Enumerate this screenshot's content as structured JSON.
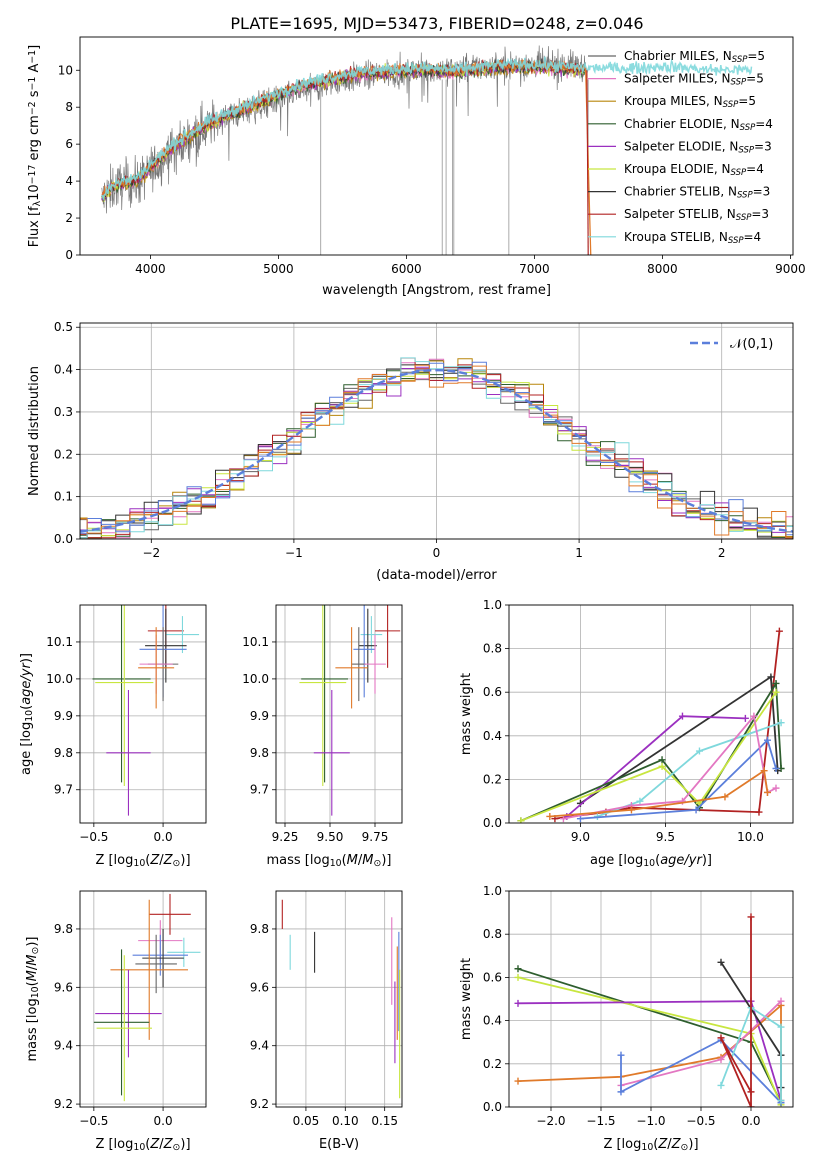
{
  "title": "PLATE=1695, MJD=53473, FIBERID=0248, z=0.046",
  "colors": {
    "Chabrier MILES": "#666666",
    "Salpeter MILES": "#e377c2",
    "Kroupa MILES": "#b8860b",
    "Chabrier ELODIE": "#2e5e2e",
    "Salpeter ELODIE": "#9b30c0",
    "Kroupa ELODIE": "#c8e640",
    "Chabrier STELIB": "#333333",
    "Salpeter STELIB": "#b22222",
    "Kroupa STELIB": "#7fd8dc",
    "blue": "#5b7fdb",
    "orange": "#e07a2a",
    "data": "#777777",
    "grid": "#b0b0b0"
  },
  "chart_data": [
    {
      "id": "spectrum",
      "type": "line",
      "title": "PLATE=1695, MJD=53473, FIBERID=0248, z=0.046",
      "xlabel": "wavelength [Angstrom, rest frame]",
      "ylabel": "Flux [f_λ 10^-17 erg cm^-2 s^-1 A^-1]",
      "xlim": [
        3450,
        9020
      ],
      "ylim": [
        0,
        11.8
      ],
      "xticks": [
        4000,
        5000,
        6000,
        7000,
        8000,
        9000
      ],
      "yticks": [
        0,
        2,
        4,
        6,
        8,
        10
      ],
      "grid": false,
      "legend_position": "top-right",
      "legend": [
        {
          "base": "Chabrier MILES, N",
          "sub": "SSP",
          "tail": "=5"
        },
        {
          "base": "Salpeter MILES, N",
          "sub": "SSP",
          "tail": "=5"
        },
        {
          "base": "Kroupa MILES, N",
          "sub": "SSP",
          "tail": "=5"
        },
        {
          "base": "Chabrier ELODIE, N",
          "sub": "SSP",
          "tail": "=4"
        },
        {
          "base": "Salpeter ELODIE, N",
          "sub": "SSP",
          "tail": "=3"
        },
        {
          "base": "Kroupa ELODIE, N",
          "sub": "SSP",
          "tail": "=4"
        },
        {
          "base": "Chabrier STELIB, N",
          "sub": "SSP",
          "tail": "=3"
        },
        {
          "base": "Salpeter STELIB, N",
          "sub": "SSP",
          "tail": "=3"
        },
        {
          "base": "Kroupa STELIB, N",
          "sub": "SSP",
          "tail": "=4"
        }
      ],
      "data_trend": {
        "x": [
          3620,
          3700,
          3800,
          3900,
          4000,
          4100,
          4200,
          4300,
          4400,
          4600,
          4800,
          5000,
          5200,
          5400,
          5600,
          5800,
          6000,
          6200,
          6400,
          6600,
          6800,
          7000,
          7200,
          7400
        ],
        "y": [
          3.0,
          3.6,
          3.9,
          3.9,
          4.6,
          5.2,
          5.8,
          6.3,
          6.8,
          7.5,
          7.9,
          8.4,
          8.9,
          9.3,
          9.6,
          9.8,
          9.9,
          10.0,
          10.1,
          10.2,
          10.3,
          10.3,
          10.3,
          10.2
        ]
      },
      "model_trend": {
        "x": [
          3620,
          3700,
          3800,
          3900,
          4000,
          4100,
          4200,
          4300,
          4400,
          4600,
          4800,
          5000,
          5200,
          5400,
          5600,
          5800,
          6000,
          6200,
          6400,
          6600,
          6800,
          7000,
          7200,
          7400,
          7600,
          7800,
          8000,
          8200,
          8400,
          8600,
          8700
        ],
        "y": [
          3.1,
          3.7,
          3.9,
          4.1,
          4.8,
          5.4,
          6.0,
          6.4,
          6.9,
          7.6,
          8.1,
          8.7,
          9.2,
          9.5,
          9.8,
          9.9,
          10.0,
          10.0,
          9.9,
          10.1,
          10.2,
          10.2,
          10.1,
          10.0,
          10.0,
          10.0,
          10.1,
          10.0,
          9.9,
          9.9,
          9.9
        ]
      },
      "dropouts": [
        5330,
        6280,
        6310,
        6360,
        6370,
        6800,
        7420
      ]
    },
    {
      "id": "residuals",
      "type": "histogram",
      "xlabel": "(data-model)/error",
      "ylabel": "Normed distribution",
      "xlim": [
        -2.5,
        2.5
      ],
      "ylim": [
        0,
        0.51
      ],
      "xticks": [
        -2,
        -1,
        0,
        1,
        2
      ],
      "yticks": [
        0.0,
        0.1,
        0.2,
        0.3,
        0.4,
        0.5
      ],
      "grid": true,
      "legend_position": "top-right",
      "legend_label": "𝒩(0,1)",
      "bin_width": 0.1
    },
    {
      "id": "age_vs_Z",
      "type": "scatter",
      "xlabel": "Z [log10(Z/Z☉)]",
      "ylabel": "age [log10(age/yr)]",
      "xlim": [
        -0.6,
        0.31
      ],
      "ylim": [
        9.61,
        10.2
      ],
      "xticks": [
        -0.5,
        0.0
      ],
      "yticks": [
        9.7,
        9.8,
        9.9,
        10.0,
        10.1
      ],
      "grid": true,
      "points": [
        {
          "s": "Salpeter STELIB",
          "x": 0.02,
          "y": 10.13,
          "xe": 0.13,
          "ye": 0.1
        },
        {
          "s": "Kroupa STELIB",
          "x": 0.14,
          "y": 10.12,
          "xe": 0.12,
          "ye": 0.05
        },
        {
          "s": "Chabrier STELIB",
          "x": 0.02,
          "y": 10.09,
          "xe": 0.15,
          "ye": 0.1
        },
        {
          "s": "blue",
          "x": 0.0,
          "y": 10.08,
          "xe": 0.17,
          "ye": 0.13
        },
        {
          "s": "Chabrier MILES",
          "x": 0.0,
          "y": 10.04,
          "xe": 0.11,
          "ye": 0.1
        },
        {
          "s": "Salpeter MILES",
          "x": -0.05,
          "y": 10.04,
          "xe": 0.12,
          "ye": 0.08
        },
        {
          "s": "orange",
          "x": -0.05,
          "y": 10.03,
          "xe": 0.13,
          "ye": 0.11
        },
        {
          "s": "Chabrier ELODIE",
          "x": -0.3,
          "y": 10.0,
          "xe": 0.21,
          "ye": 0.28
        },
        {
          "s": "Kroupa ELODIE",
          "x": -0.28,
          "y": 9.99,
          "xe": 0.21,
          "ye": 0.28
        },
        {
          "s": "Salpeter ELODIE",
          "x": -0.25,
          "y": 9.8,
          "xe": 0.16,
          "ye": 0.17
        }
      ]
    },
    {
      "id": "age_vs_mass",
      "type": "scatter",
      "xlabel": "mass [log10(M/M☉)]",
      "ylabel": "",
      "xlim": [
        9.2,
        9.9
      ],
      "ylim": [
        9.61,
        10.2
      ],
      "xticks": [
        9.25,
        9.5,
        9.75
      ],
      "yticks": [
        9.7,
        9.8,
        9.9,
        10.0,
        10.1
      ],
      "grid": true,
      "points": [
        {
          "s": "Salpeter STELIB",
          "x": 9.82,
          "y": 10.13,
          "xe": 0.07,
          "ye": 0.1
        },
        {
          "s": "Kroupa STELIB",
          "x": 9.73,
          "y": 10.12,
          "xe": 0.06,
          "ye": 0.05
        },
        {
          "s": "Chabrier STELIB",
          "x": 9.71,
          "y": 10.09,
          "xe": 0.05,
          "ye": 0.1
        },
        {
          "s": "blue",
          "x": 9.69,
          "y": 10.08,
          "xe": 0.06,
          "ye": 0.13
        },
        {
          "s": "Chabrier MILES",
          "x": 9.66,
          "y": 10.04,
          "xe": 0.04,
          "ye": 0.1
        },
        {
          "s": "Salpeter MILES",
          "x": 9.75,
          "y": 10.04,
          "xe": 0.06,
          "ye": 0.08
        },
        {
          "s": "orange",
          "x": 9.62,
          "y": 10.03,
          "xe": 0.09,
          "ye": 0.11
        },
        {
          "s": "Chabrier ELODIE",
          "x": 9.47,
          "y": 10.0,
          "xe": 0.13,
          "ye": 0.28
        },
        {
          "s": "Kroupa ELODIE",
          "x": 9.46,
          "y": 9.99,
          "xe": 0.13,
          "ye": 0.28
        },
        {
          "s": "Salpeter ELODIE",
          "x": 9.51,
          "y": 9.8,
          "xe": 0.1,
          "ye": 0.17
        }
      ]
    },
    {
      "id": "weight_vs_age",
      "type": "line",
      "xlabel": "age [log10(age/yr)]",
      "ylabel": "mass weight",
      "xlim": [
        8.58,
        10.25
      ],
      "ylim": [
        0,
        1.0
      ],
      "xticks": [
        9.0,
        9.5,
        10.0
      ],
      "yticks": [
        0.0,
        0.2,
        0.4,
        0.6,
        0.8,
        1.0
      ],
      "grid": true,
      "series": [
        {
          "s": "Salpeter STELIB",
          "x": [
            8.85,
            9.15,
            9.3,
            10.05,
            10.17
          ],
          "y": [
            0.02,
            0.05,
            0.07,
            0.05,
            0.88
          ]
        },
        {
          "s": "Chabrier STELIB",
          "x": [
            9.0,
            10.12,
            10.16
          ],
          "y": [
            0.09,
            0.67,
            0.24
          ]
        },
        {
          "s": "Salpeter ELODIE",
          "x": [
            8.92,
            9.6,
            9.97
          ],
          "y": [
            0.03,
            0.49,
            0.48
          ]
        },
        {
          "s": "Chabrier ELODIE",
          "x": [
            8.65,
            9.48,
            9.7,
            10.15,
            10.18
          ],
          "y": [
            0.01,
            0.29,
            0.07,
            0.64,
            0.25
          ]
        },
        {
          "s": "Kroupa ELODIE",
          "x": [
            8.65,
            9.48,
            9.7,
            10.15
          ],
          "y": [
            0.01,
            0.26,
            0.09,
            0.6
          ]
        },
        {
          "s": "Kroupa STELIB",
          "x": [
            9.1,
            9.35,
            9.7,
            10.18
          ],
          "y": [
            0.03,
            0.1,
            0.33,
            0.46
          ]
        },
        {
          "s": "blue",
          "x": [
            9.0,
            9.68,
            10.1,
            10.15
          ],
          "y": [
            0.02,
            0.06,
            0.38,
            0.25
          ]
        },
        {
          "s": "Salpeter MILES",
          "x": [
            8.9,
            9.3,
            9.6,
            10.02,
            10.1,
            10.15
          ],
          "y": [
            0.02,
            0.08,
            0.1,
            0.49,
            0.14,
            0.16
          ]
        },
        {
          "s": "orange",
          "x": [
            8.82,
            9.3,
            9.85,
            10.08,
            10.1
          ],
          "y": [
            0.03,
            0.06,
            0.12,
            0.24,
            0.14
          ]
        }
      ]
    },
    {
      "id": "mass_vs_Z",
      "type": "scatter",
      "xlabel": "Z [log10(Z/Z☉)]",
      "ylabel": "mass [log10(M/M☉)]",
      "xlim": [
        -0.6,
        0.31
      ],
      "ylim": [
        9.19,
        9.93
      ],
      "xticks": [
        -0.5,
        0.0
      ],
      "yticks": [
        9.2,
        9.4,
        9.6,
        9.8
      ],
      "grid": true,
      "points": [
        {
          "s": "Salpeter STELIB",
          "x": 0.05,
          "y": 9.85,
          "xe": 0.15,
          "ye": 0.07
        },
        {
          "s": "Salpeter MILES",
          "x": -0.02,
          "y": 9.76,
          "xe": 0.16,
          "ye": 0.07
        },
        {
          "s": "Kroupa STELIB",
          "x": 0.15,
          "y": 9.72,
          "xe": 0.12,
          "ye": 0.05
        },
        {
          "s": "blue",
          "x": -0.02,
          "y": 9.71,
          "xe": 0.2,
          "ye": 0.07
        },
        {
          "s": "Chabrier STELIB",
          "x": 0.0,
          "y": 9.7,
          "xe": 0.15,
          "ye": 0.1
        },
        {
          "s": "Chabrier MILES",
          "x": -0.05,
          "y": 9.68,
          "xe": 0.15,
          "ye": 0.1
        },
        {
          "s": "orange",
          "x": -0.1,
          "y": 9.66,
          "xe": 0.28,
          "ye": 0.24
        },
        {
          "s": "Salpeter ELODIE",
          "x": -0.25,
          "y": 9.51,
          "xe": 0.24,
          "ye": 0.15
        },
        {
          "s": "Chabrier ELODIE",
          "x": -0.3,
          "y": 9.48,
          "xe": 0.2,
          "ye": 0.25
        },
        {
          "s": "Kroupa ELODIE",
          "x": -0.28,
          "y": 9.46,
          "xe": 0.2,
          "ye": 0.25
        }
      ]
    },
    {
      "id": "mass_vs_ebv",
      "type": "scatter",
      "xlabel": "E(B-V)",
      "ylabel": "",
      "xlim": [
        0.012,
        0.172
      ],
      "ylim": [
        9.19,
        9.93
      ],
      "xticks": [
        0.05,
        0.1,
        0.15
      ],
      "yticks": [
        9.2,
        9.4,
        9.6,
        9.8
      ],
      "grid": true,
      "points": [
        {
          "s": "Salpeter STELIB",
          "x": 0.02,
          "y": 9.85,
          "xe": 0.0,
          "ye": 0.05
        },
        {
          "s": "Kroupa STELIB",
          "x": 0.03,
          "y": 9.72,
          "xe": 0.0,
          "ye": 0.06
        },
        {
          "s": "Chabrier STELIB",
          "x": 0.061,
          "y": 9.72,
          "xe": 0.0,
          "ye": 0.07
        },
        {
          "s": "Salpeter MILES",
          "x": 0.159,
          "y": 9.69,
          "xe": 0.0,
          "ye": 0.15
        },
        {
          "s": "orange",
          "x": 0.166,
          "y": 9.58,
          "xe": 0.0,
          "ye": 0.16
        },
        {
          "s": "blue",
          "x": 0.168,
          "y": 9.62,
          "xe": 0.0,
          "ye": 0.17
        },
        {
          "s": "Salpeter ELODIE",
          "x": 0.163,
          "y": 9.48,
          "xe": 0.0,
          "ye": 0.14
        },
        {
          "s": "Kroupa ELODIE",
          "x": 0.169,
          "y": 9.44,
          "xe": 0.0,
          "ye": 0.22
        }
      ]
    },
    {
      "id": "weight_vs_Z",
      "type": "line",
      "xlabel": "Z [log10(Z/Z☉)]",
      "ylabel": "mass weight",
      "xlim": [
        -2.42,
        0.42
      ],
      "ylim": [
        0,
        1.0
      ],
      "xticks": [
        -2.0,
        -1.5,
        -1.0,
        -0.5,
        0.0
      ],
      "yticks": [
        0.0,
        0.2,
        0.4,
        0.6,
        0.8,
        1.0
      ],
      "grid": true,
      "series": [
        {
          "s": "Chabrier ELODIE",
          "x": [
            -2.33,
            0.0,
            0.3
          ],
          "y": [
            0.64,
            0.3,
            0.02
          ]
        },
        {
          "s": "Kroupa ELODIE",
          "x": [
            -2.33,
            0.0,
            0.3
          ],
          "y": [
            0.6,
            0.34,
            0.01
          ]
        },
        {
          "s": "Salpeter ELODIE",
          "x": [
            -2.33,
            0.0,
            0.3
          ],
          "y": [
            0.48,
            0.49,
            0.03
          ]
        },
        {
          "s": "orange",
          "x": [
            -2.33,
            -1.3,
            -0.3,
            0.3,
            0.3
          ],
          "y": [
            0.12,
            0.14,
            0.23,
            0.47,
            0.03
          ]
        },
        {
          "s": "Salpeter MILES",
          "x": [
            -1.3,
            -0.3,
            0.3
          ],
          "y": [
            0.1,
            0.22,
            0.49
          ]
        },
        {
          "s": "blue",
          "x": [
            -1.3,
            -1.3,
            -0.3,
            0.3
          ],
          "y": [
            0.24,
            0.07,
            0.31,
            0.02
          ]
        },
        {
          "s": "Chabrier STELIB",
          "x": [
            -0.3,
            0.3,
            0.3
          ],
          "y": [
            0.67,
            0.24,
            0.09
          ]
        },
        {
          "s": "Kroupa STELIB",
          "x": [
            -0.3,
            0.0,
            0.3,
            0.3
          ],
          "y": [
            0.1,
            0.46,
            0.37,
            0.03
          ]
        },
        {
          "s": "Salpeter STELIB",
          "x": [
            0.0,
            0.0,
            -0.3,
            0.0
          ],
          "y": [
            0.88,
            0.0,
            0.32,
            0.07
          ]
        }
      ]
    }
  ]
}
